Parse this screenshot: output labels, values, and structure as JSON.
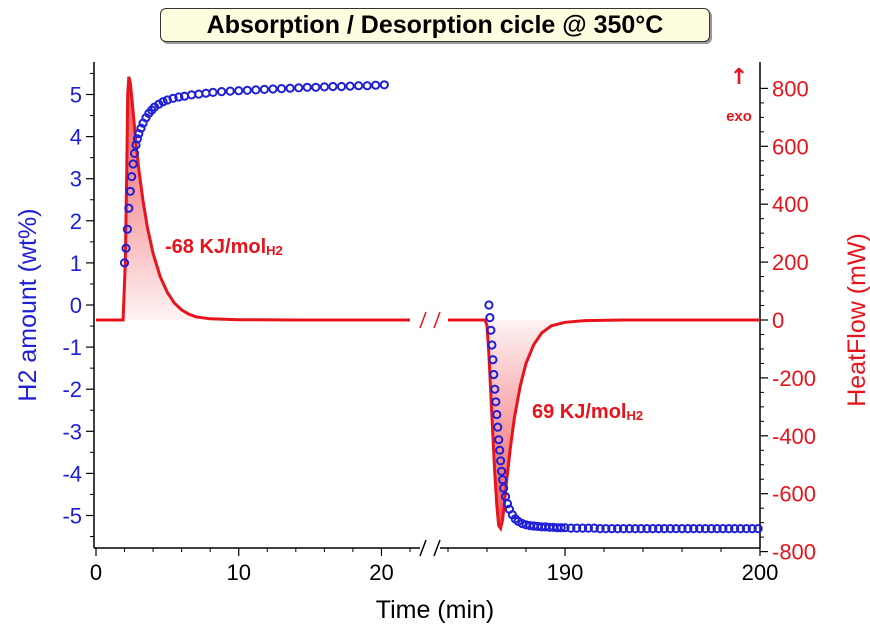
{
  "chart_data": {
    "type": "scatter",
    "title": "Absorption / Desorption cicle @ 350°C",
    "xlabel": "Time (min)",
    "ylabel_left": "H2 amount (wt%)",
    "ylabel_right": "HeatFlow (mW)",
    "x_segments": [
      {
        "range": [
          0,
          22
        ],
        "ticks": [
          0,
          10,
          20
        ]
      },
      {
        "range": [
          184,
          200
        ],
        "ticks": [
          190,
          200
        ]
      }
    ],
    "ylim_left": [
      -5.8,
      5.6
    ],
    "ylim_right": [
      -800,
      900
    ],
    "yticks_left": [
      5,
      4,
      3,
      2,
      1,
      0,
      -1,
      -2,
      -3,
      -4,
      -5
    ],
    "yticks_right": [
      800,
      600,
      400,
      200,
      0,
      -200,
      -400,
      -600,
      -800
    ],
    "series": [
      {
        "name": "H2 amount (wt%)",
        "axis": "left",
        "color": "#1f1fd6",
        "marker": "circle",
        "points": [
          [
            2.0,
            1.0
          ],
          [
            2.1,
            1.35
          ],
          [
            2.2,
            1.8
          ],
          [
            2.3,
            2.3
          ],
          [
            2.4,
            2.7
          ],
          [
            2.5,
            3.05
          ],
          [
            2.6,
            3.35
          ],
          [
            2.7,
            3.6
          ],
          [
            2.8,
            3.8
          ],
          [
            2.9,
            3.95
          ],
          [
            3.0,
            4.07
          ],
          [
            3.15,
            4.2
          ],
          [
            3.3,
            4.32
          ],
          [
            3.5,
            4.45
          ],
          [
            3.7,
            4.55
          ],
          [
            3.9,
            4.63
          ],
          [
            4.1,
            4.7
          ],
          [
            4.4,
            4.77
          ],
          [
            4.7,
            4.83
          ],
          [
            5.0,
            4.87
          ],
          [
            5.4,
            4.91
          ],
          [
            5.8,
            4.94
          ],
          [
            6.2,
            4.96
          ],
          [
            6.7,
            4.99
          ],
          [
            7.2,
            5.01
          ],
          [
            7.7,
            5.03
          ],
          [
            8.2,
            5.05
          ],
          [
            8.8,
            5.07
          ],
          [
            9.4,
            5.08
          ],
          [
            10.0,
            5.09
          ],
          [
            10.6,
            5.1
          ],
          [
            11.2,
            5.11
          ],
          [
            11.8,
            5.12
          ],
          [
            12.4,
            5.13
          ],
          [
            13.0,
            5.14
          ],
          [
            13.6,
            5.15
          ],
          [
            14.2,
            5.16
          ],
          [
            14.8,
            5.17
          ],
          [
            15.4,
            5.17
          ],
          [
            16.0,
            5.18
          ],
          [
            16.6,
            5.19
          ],
          [
            17.2,
            5.19
          ],
          [
            17.8,
            5.2
          ],
          [
            18.4,
            5.21
          ],
          [
            19.0,
            5.21
          ],
          [
            19.6,
            5.22
          ],
          [
            20.2,
            5.23
          ],
          [
            186.1,
            0.0
          ],
          [
            186.15,
            -0.3
          ],
          [
            186.2,
            -0.6
          ],
          [
            186.25,
            -0.95
          ],
          [
            186.3,
            -1.3
          ],
          [
            186.35,
            -1.65
          ],
          [
            186.4,
            -2.0
          ],
          [
            186.45,
            -2.3
          ],
          [
            186.5,
            -2.6
          ],
          [
            186.55,
            -2.9
          ],
          [
            186.6,
            -3.2
          ],
          [
            186.65,
            -3.45
          ],
          [
            186.7,
            -3.7
          ],
          [
            186.75,
            -3.95
          ],
          [
            186.8,
            -4.15
          ],
          [
            186.85,
            -4.35
          ],
          [
            186.95,
            -4.55
          ],
          [
            187.05,
            -4.72
          ],
          [
            187.15,
            -4.85
          ],
          [
            187.3,
            -4.98
          ],
          [
            187.45,
            -5.08
          ],
          [
            187.6,
            -5.14
          ],
          [
            187.8,
            -5.19
          ],
          [
            188.0,
            -5.22
          ],
          [
            188.2,
            -5.24
          ],
          [
            188.4,
            -5.25
          ],
          [
            188.6,
            -5.26
          ],
          [
            188.8,
            -5.27
          ],
          [
            189.0,
            -5.27
          ],
          [
            189.2,
            -5.28
          ],
          [
            189.4,
            -5.28
          ],
          [
            189.6,
            -5.29
          ],
          [
            189.8,
            -5.29
          ],
          [
            190.0,
            -5.29
          ],
          [
            190.3,
            -5.3
          ],
          [
            190.6,
            -5.3
          ],
          [
            190.9,
            -5.3
          ],
          [
            191.2,
            -5.3
          ],
          [
            191.5,
            -5.3
          ],
          [
            191.8,
            -5.31
          ],
          [
            192.1,
            -5.31
          ],
          [
            192.4,
            -5.31
          ],
          [
            192.7,
            -5.31
          ],
          [
            193.0,
            -5.31
          ],
          [
            193.3,
            -5.31
          ],
          [
            193.6,
            -5.31
          ],
          [
            193.9,
            -5.31
          ],
          [
            194.2,
            -5.31
          ],
          [
            194.5,
            -5.31
          ],
          [
            194.8,
            -5.31
          ],
          [
            195.1,
            -5.31
          ],
          [
            195.4,
            -5.31
          ],
          [
            195.7,
            -5.31
          ],
          [
            196.0,
            -5.31
          ],
          [
            196.3,
            -5.31
          ],
          [
            196.6,
            -5.31
          ],
          [
            196.9,
            -5.31
          ],
          [
            197.2,
            -5.31
          ],
          [
            197.5,
            -5.31
          ],
          [
            197.8,
            -5.31
          ],
          [
            198.1,
            -5.31
          ],
          [
            198.4,
            -5.31
          ],
          [
            198.7,
            -5.31
          ],
          [
            199.0,
            -5.31
          ],
          [
            199.3,
            -5.31
          ],
          [
            199.6,
            -5.31
          ],
          [
            199.9,
            -5.31
          ]
        ]
      },
      {
        "name": "HeatFlow (mW)",
        "axis": "right",
        "color": "#e8141c",
        "marker": "line",
        "points": [
          [
            0,
            0
          ],
          [
            1.9,
            0
          ],
          [
            2.05,
            200
          ],
          [
            2.15,
            500
          ],
          [
            2.22,
            780
          ],
          [
            2.3,
            840
          ],
          [
            2.4,
            820
          ],
          [
            2.6,
            720
          ],
          [
            2.8,
            610
          ],
          [
            3.0,
            520
          ],
          [
            3.3,
            410
          ],
          [
            3.6,
            320
          ],
          [
            4.0,
            230
          ],
          [
            4.5,
            150
          ],
          [
            5.0,
            95
          ],
          [
            5.5,
            58
          ],
          [
            6.0,
            35
          ],
          [
            6.5,
            20
          ],
          [
            7.0,
            11
          ],
          [
            8.0,
            4
          ],
          [
            10.0,
            1
          ],
          [
            14.0,
            0
          ],
          [
            22.0,
            0
          ],
          [
            184.0,
            0
          ],
          [
            185.9,
            0
          ],
          [
            186.0,
            -20
          ],
          [
            186.1,
            -120
          ],
          [
            186.2,
            -260
          ],
          [
            186.3,
            -400
          ],
          [
            186.4,
            -530
          ],
          [
            186.5,
            -640
          ],
          [
            186.6,
            -710
          ],
          [
            186.7,
            -720
          ],
          [
            186.8,
            -690
          ],
          [
            186.9,
            -630
          ],
          [
            187.0,
            -560
          ],
          [
            187.2,
            -440
          ],
          [
            187.4,
            -340
          ],
          [
            187.7,
            -230
          ],
          [
            188.0,
            -150
          ],
          [
            188.4,
            -85
          ],
          [
            188.8,
            -45
          ],
          [
            189.3,
            -20
          ],
          [
            190.0,
            -8
          ],
          [
            191.0,
            -2
          ],
          [
            193.0,
            0
          ],
          [
            200.0,
            0
          ]
        ]
      }
    ],
    "annotations": [
      {
        "main": "-68 KJ/mol",
        "sub": "H2",
        "color": "#e8141c"
      },
      {
        "main": "69 KJ/mol",
        "sub": "H2",
        "color": "#e8141c"
      },
      {
        "main": "↑",
        "sub": "exo",
        "color": "#e8141c"
      }
    ],
    "grid": false,
    "legend": "none"
  }
}
